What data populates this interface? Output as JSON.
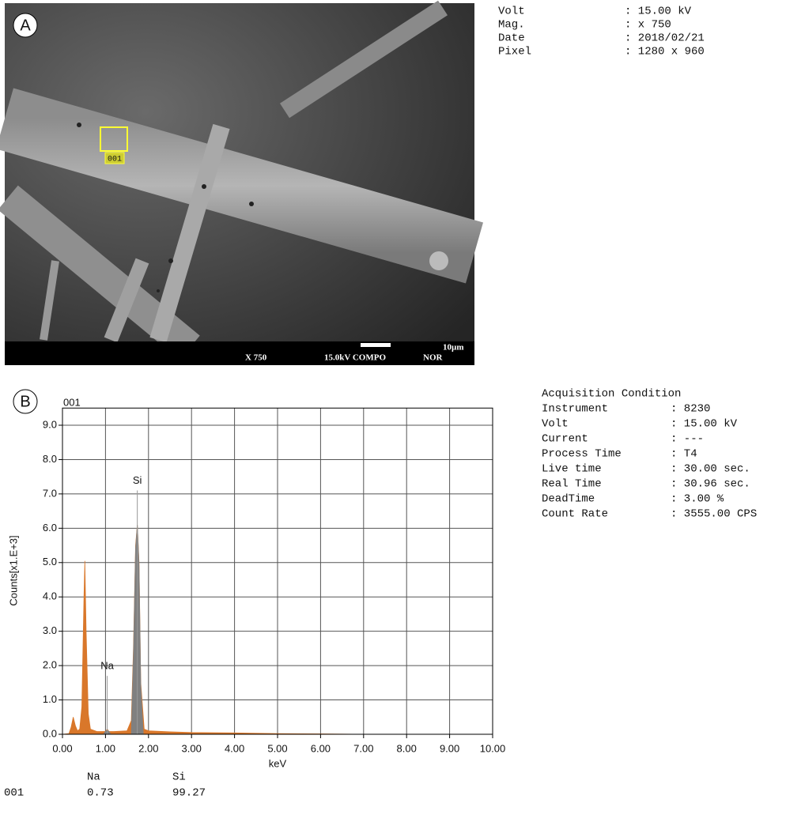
{
  "panel_a": {
    "label": "A",
    "roi_label": "001",
    "info": [
      [
        "Volt",
        ": 15.00 kV"
      ],
      [
        "Mag.",
        ": x 750"
      ],
      [
        "Date",
        ": 2018/02/21"
      ],
      [
        "Pixel",
        ": 1280 x 960"
      ]
    ],
    "footer": {
      "mag": "X 750",
      "mode": "15.0kV COMPO",
      "nor": "NOR",
      "scale": "10µm"
    }
  },
  "chart_data": {
    "type": "area",
    "panel_label": "B",
    "title": "001",
    "y_label": "Counts[x1.E+3]",
    "x_label": "keV",
    "xlim": [
      0,
      10
    ],
    "ylim": [
      0,
      9.5
    ],
    "xticks": [
      {
        "value": 0,
        "label": "0.00"
      },
      {
        "value": 1,
        "label": "1.00"
      },
      {
        "value": 2,
        "label": "2.00"
      },
      {
        "value": 3,
        "label": "3.00"
      },
      {
        "value": 4,
        "label": "4.00"
      },
      {
        "value": 5,
        "label": "5.00"
      },
      {
        "value": 6,
        "label": "6.00"
      },
      {
        "value": 7,
        "label": "7.00"
      },
      {
        "value": 8,
        "label": "8.00"
      },
      {
        "value": 9,
        "label": "9.00"
      },
      {
        "value": 10,
        "label": "10.00"
      }
    ],
    "yticks": [
      {
        "value": 0,
        "label": "0.0"
      },
      {
        "value": 1,
        "label": "1.0"
      },
      {
        "value": 2,
        "label": "2.0"
      },
      {
        "value": 3,
        "label": "3.0"
      },
      {
        "value": 4,
        "label": "4.0"
      },
      {
        "value": 5,
        "label": "5.0"
      },
      {
        "value": 6,
        "label": "6.0"
      },
      {
        "value": 7,
        "label": "7.0"
      },
      {
        "value": 8,
        "label": "8.0"
      },
      {
        "value": 9,
        "label": "9.0"
      }
    ],
    "grid": true,
    "series": [
      {
        "color": "#d9772a",
        "x": [
          0,
          0.15,
          0.2,
          0.25,
          0.3,
          0.35,
          0.4,
          0.45,
          0.5,
          0.52,
          0.55,
          0.6,
          0.65,
          0.8,
          1.0,
          1.04,
          1.08,
          1.2,
          1.5,
          1.6,
          1.65,
          1.7,
          1.74,
          1.78,
          1.82,
          1.9,
          2.0,
          2.5,
          3.0,
          4.0,
          5.0,
          6.0,
          7.0,
          8.0,
          10.0
        ],
        "values": [
          0,
          0.02,
          0.2,
          0.5,
          0.25,
          0.1,
          0.15,
          0.8,
          4.0,
          5.05,
          3.0,
          0.6,
          0.15,
          0.08,
          0.08,
          0.15,
          0.08,
          0.08,
          0.1,
          0.4,
          2.5,
          5.5,
          6.1,
          5.0,
          1.5,
          0.15,
          0.1,
          0.07,
          0.05,
          0.04,
          0.02,
          0.01,
          0,
          0,
          0
        ]
      },
      {
        "color": "#808080",
        "x": [
          0.95,
          1.0,
          1.04,
          1.08,
          1.12,
          1.4,
          1.6,
          1.65,
          1.7,
          1.74,
          1.78,
          1.82,
          1.88
        ],
        "values": [
          0,
          0.08,
          0.12,
          0.08,
          0,
          null,
          0,
          2.3,
          5.4,
          6.1,
          4.9,
          1.4,
          0
        ]
      }
    ],
    "peaks": [
      {
        "label": "Na",
        "energy": 1.04,
        "marker_top": 1.7
      },
      {
        "label": "Si",
        "energy": 1.74,
        "marker_top": 7.1
      }
    ]
  },
  "acquisition": {
    "title": "Acquisition Condition",
    "rows": [
      [
        "Instrument",
        ": 8230"
      ],
      [
        "Volt",
        ": 15.00 kV"
      ],
      [
        "Current",
        ": ---"
      ],
      [
        "Process Time",
        ": T4"
      ],
      [
        "Live time",
        ": 30.00 sec."
      ],
      [
        "Real Time",
        ": 30.96 sec."
      ],
      [
        "DeadTime",
        ": 3.00 %"
      ],
      [
        "Count Rate",
        ": 3555.00 CPS"
      ]
    ]
  },
  "table": {
    "columns": [
      "Na",
      "Si"
    ],
    "rows": [
      {
        "name": "001",
        "values": [
          0.73,
          99.27
        ]
      }
    ]
  }
}
